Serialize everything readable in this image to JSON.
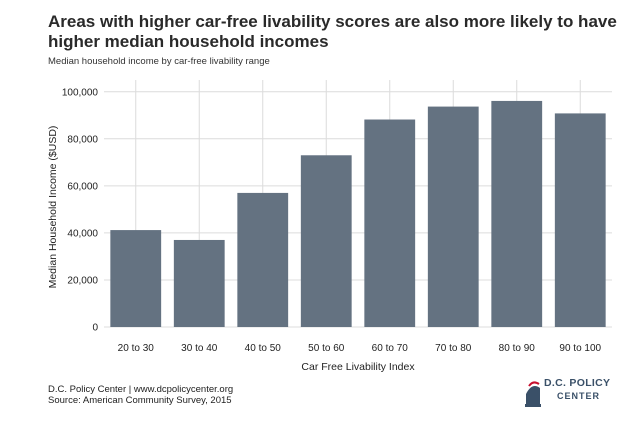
{
  "chart_data": {
    "type": "bar",
    "title": "Areas with higher car-free livability scores are also more likely to have higher median household incomes",
    "subtitle": "Median household income by car-free livability range",
    "xlabel": "Car Free Livability Index",
    "ylabel": "Median Household Income ($USD)",
    "categories": [
      "20 to 30",
      "30 to 40",
      "40 to 50",
      "50 to 60",
      "60 to 70",
      "70 to 80",
      "80 to 90",
      "90 to 100"
    ],
    "values": [
      41200,
      37000,
      57000,
      73000,
      88200,
      93700,
      96100,
      90800
    ],
    "ylim": [
      0,
      105000
    ],
    "yticks": [
      0,
      20000,
      40000,
      60000,
      80000,
      100000
    ],
    "ytick_labels": [
      "0",
      "20,000",
      "40,000",
      "60,000",
      "80,000",
      "100,000"
    ],
    "grid": true,
    "bar_color": "#647281",
    "grid_color": "#dcdcdc"
  },
  "footer": {
    "line1": "D.C. Policy Center | www.dcpolicycenter.org",
    "line2": "Source: American Community Survey, 2015"
  },
  "logo": {
    "line1": "D.C. POLICY",
    "line2": "CENTER",
    "accent_color": "#c8102e",
    "brand_color": "#3a5068"
  }
}
